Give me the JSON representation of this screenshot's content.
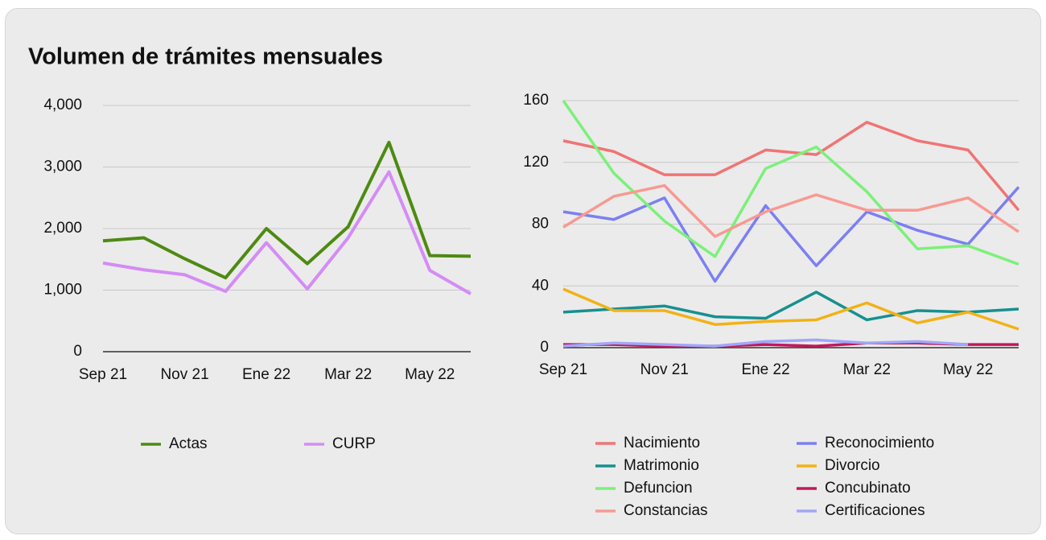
{
  "title": "Volumen de trámites mensuales",
  "chart_data": [
    {
      "type": "line",
      "categories": [
        "Sep 21",
        null,
        "Nov 21",
        null,
        "Ene 22",
        null,
        "Mar 22",
        null,
        "May 22",
        null
      ],
      "ylim": [
        0,
        4000
      ],
      "yticks": [
        0,
        {
          "value": 1000,
          "label": "1,000"
        },
        {
          "value": 2000,
          "label": "2,000"
        },
        {
          "value": 3000,
          "label": "3,000"
        },
        {
          "value": 4000,
          "label": "4,000"
        }
      ],
      "grid": true,
      "series": [
        {
          "name": "Actas",
          "color": "#4e8a12",
          "values": [
            1800,
            1850,
            1510,
            1200,
            2000,
            1430,
            2030,
            3400,
            1560,
            1550
          ]
        },
        {
          "name": "CURP",
          "color": "#d48cf5",
          "values": [
            1440,
            1330,
            1250,
            980,
            1770,
            1020,
            1850,
            2920,
            1320,
            940
          ]
        }
      ]
    },
    {
      "type": "line",
      "categories": [
        "Sep 21",
        null,
        "Nov 21",
        null,
        "Ene 22",
        null,
        "Mar 22",
        null,
        "May 22",
        null
      ],
      "ylim": [
        0,
        160
      ],
      "yticks": [
        0,
        40,
        80,
        120,
        160
      ],
      "grid": true,
      "series": [
        {
          "name": "Nacimiento",
          "color": "#f07474",
          "values": [
            134,
            127,
            112,
            112,
            128,
            125,
            146,
            134,
            128,
            89
          ]
        },
        {
          "name": "Reconocimiento",
          "color": "#7d7ff2",
          "values": [
            88,
            83,
            97,
            43,
            92,
            53,
            88,
            76,
            67,
            104
          ]
        },
        {
          "name": "Matrimonio",
          "color": "#17908f",
          "values": [
            23,
            25,
            27,
            20,
            19,
            36,
            18,
            24,
            23,
            25
          ]
        },
        {
          "name": "Divorcio",
          "color": "#f2b216",
          "values": [
            38,
            24,
            24,
            15,
            17,
            18,
            29,
            16,
            23,
            12
          ]
        },
        {
          "name": "Defuncion",
          "color": "#7cf07a",
          "values": [
            160,
            113,
            82,
            59,
            116,
            130,
            101,
            64,
            66,
            54
          ]
        },
        {
          "name": "Concubinato",
          "color": "#c2185b",
          "values": [
            2,
            2,
            1,
            1,
            2,
            1,
            3,
            3,
            2,
            2
          ]
        },
        {
          "name": "Constancias",
          "color": "#f79a92",
          "values": [
            78,
            98,
            105,
            72,
            88,
            99,
            89,
            89,
            97,
            75
          ]
        },
        {
          "name": "Certificaciones",
          "color": "#a2a6f8",
          "values": [
            1,
            3,
            2,
            1,
            4,
            5,
            3,
            4,
            2,
            null
          ]
        }
      ]
    }
  ]
}
